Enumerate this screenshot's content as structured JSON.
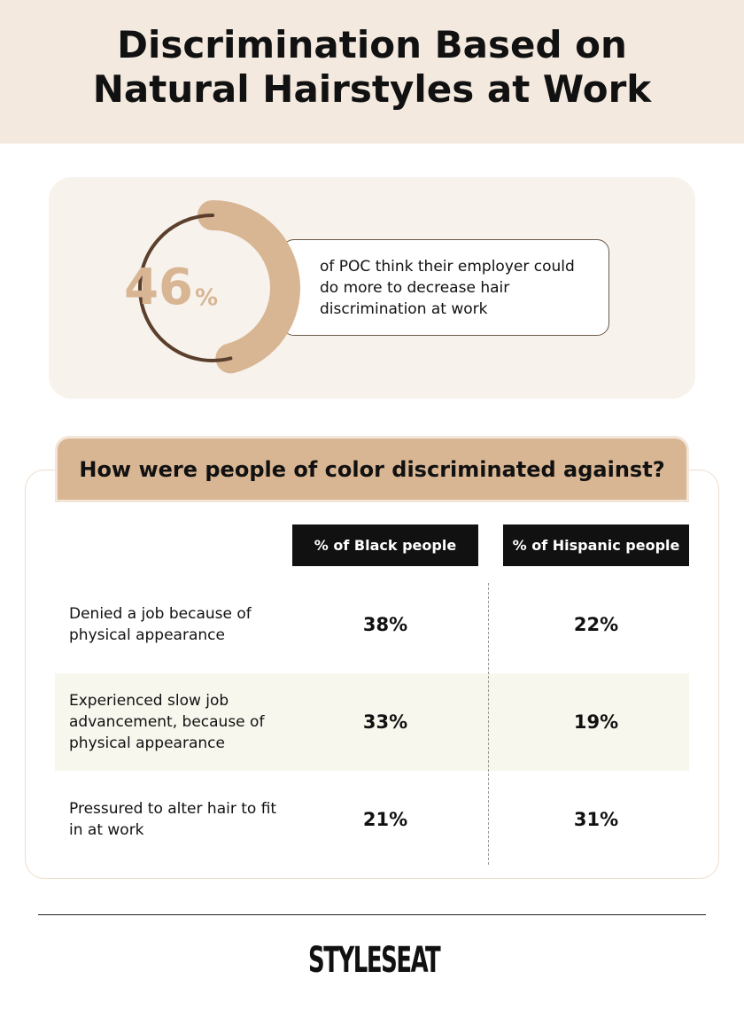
{
  "header": {
    "title": "Discrimination Based on Natural Hairstyles at Work"
  },
  "stat": {
    "value": 46,
    "unit": "%",
    "text": "of POC think their employer could do more to decrease hair discrimination at work"
  },
  "section": {
    "title": "How were people of color discriminated against?"
  },
  "table": {
    "columns": [
      "% of Black people",
      "% of Hispanic people"
    ],
    "rows": [
      [
        "Denied a job because of physical appearance",
        "38%",
        "22%"
      ],
      [
        "Experienced slow job advancement, because of physical appearance",
        "33%",
        "19%"
      ],
      [
        "Pressured to alter hair to fit in at work",
        "21%",
        "31%"
      ]
    ]
  },
  "footer": {
    "logo": "STYLESEAT"
  }
}
